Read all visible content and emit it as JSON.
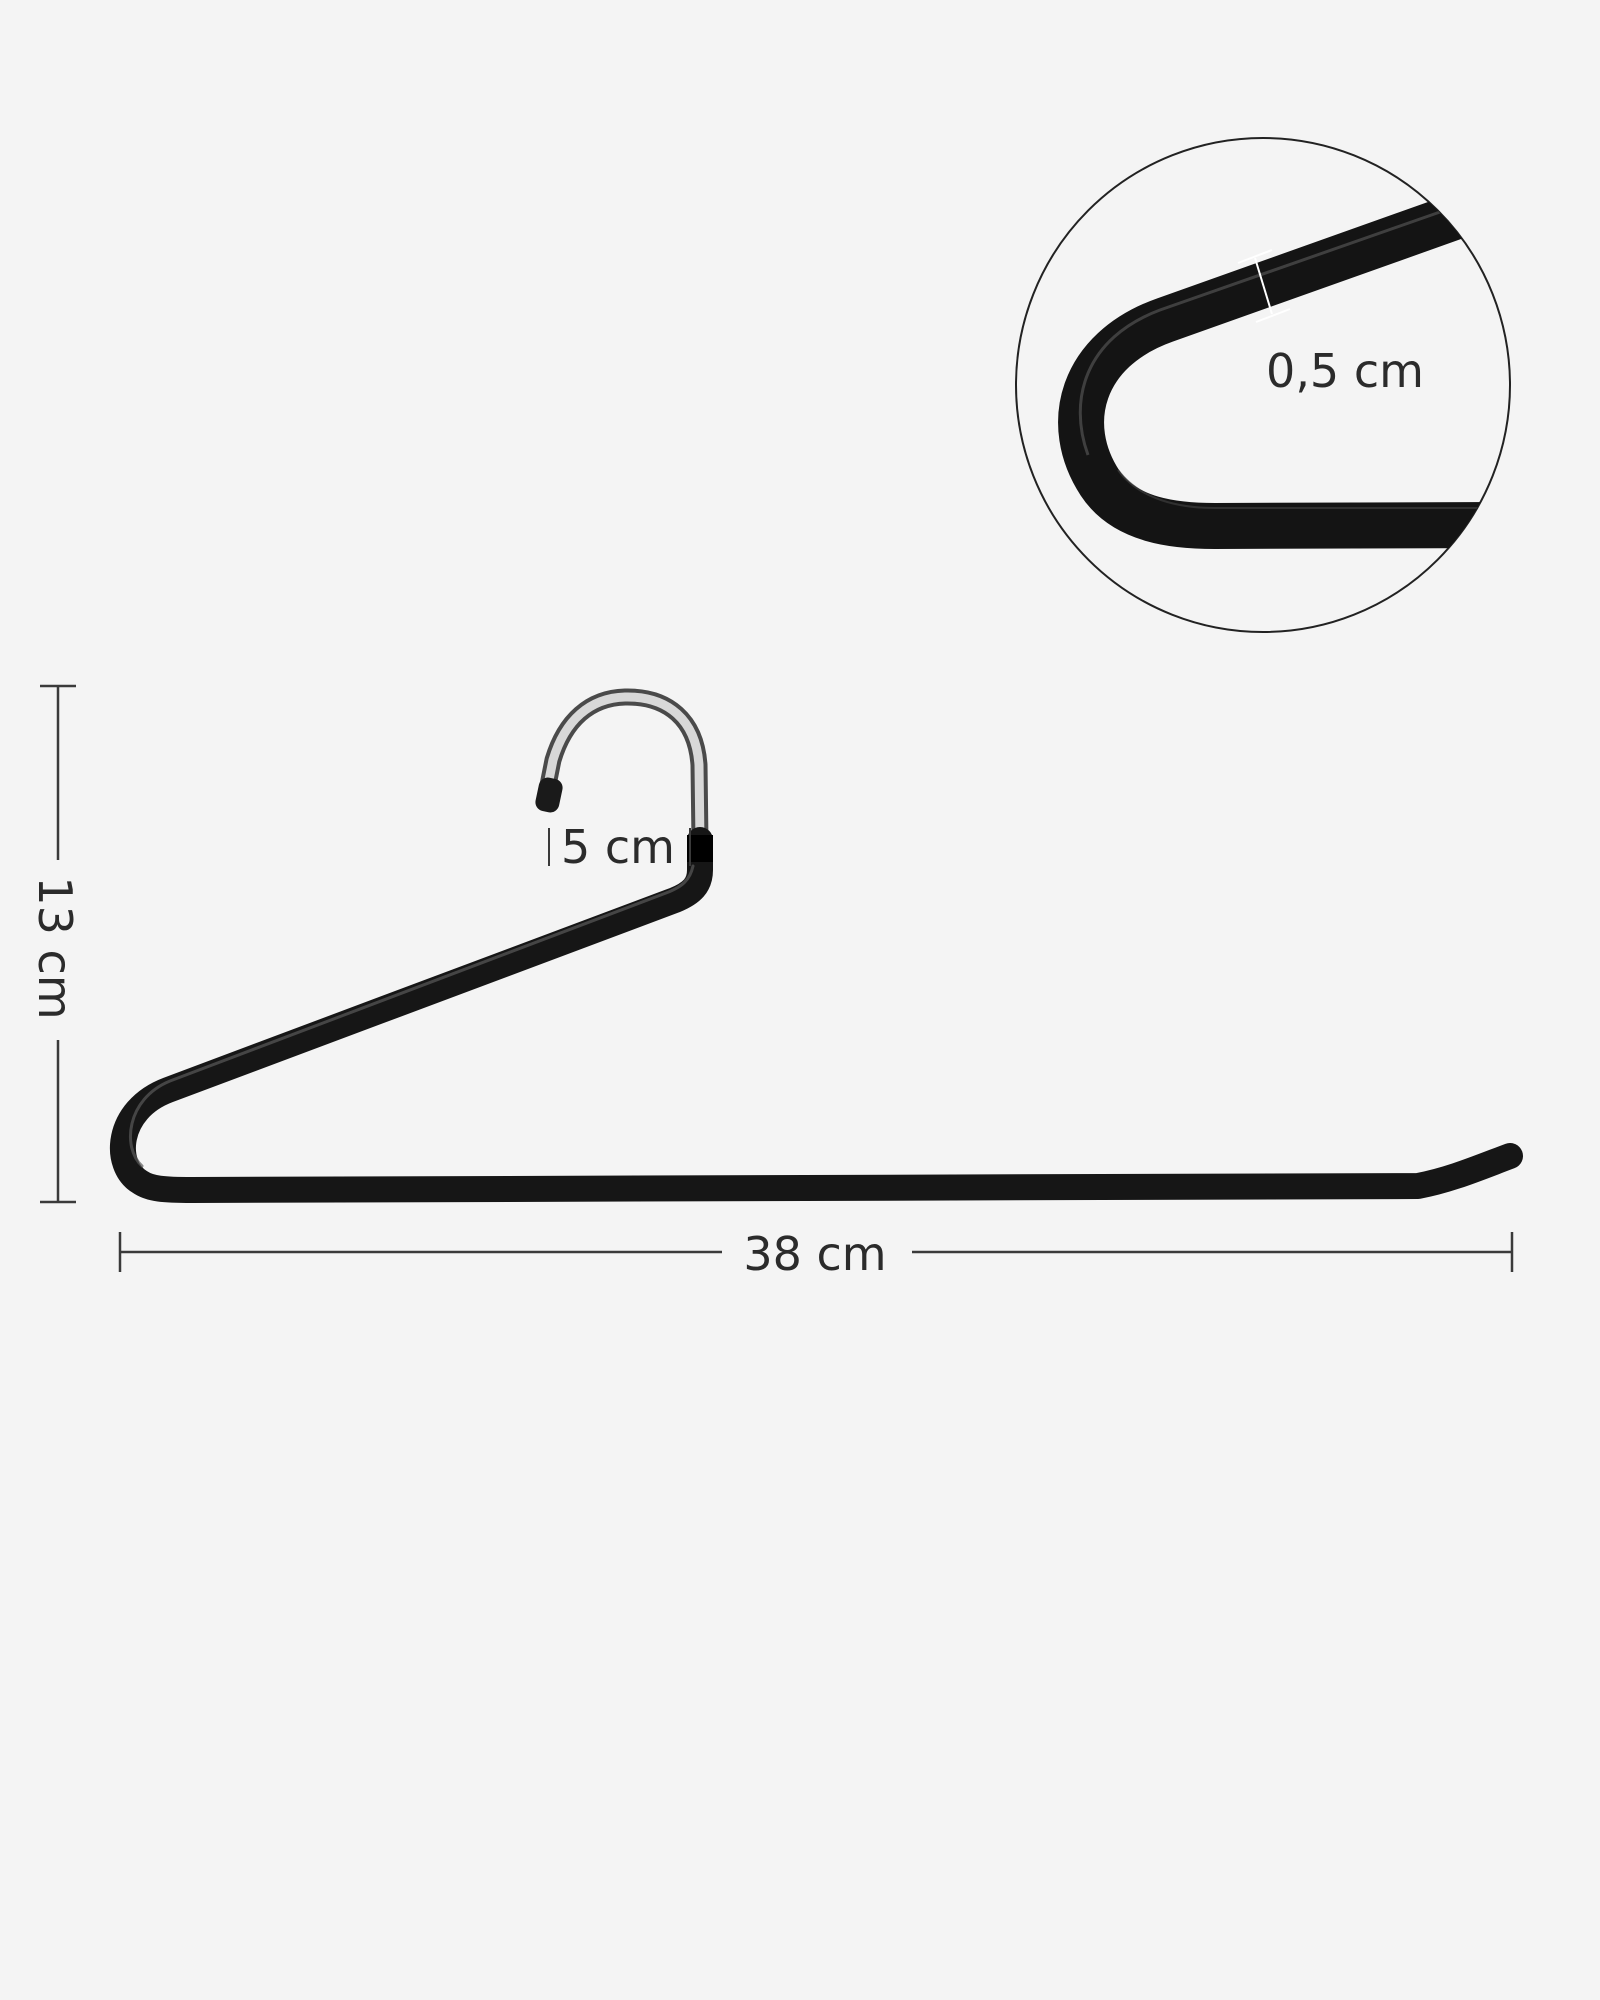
{
  "dimensions": {
    "width_label": "38 cm",
    "height_label": "13 cm",
    "hook_label": "5 cm",
    "thickness_label": "0,5 cm"
  },
  "colors": {
    "background": "#f4f4f4",
    "hanger": "#1c1c1c",
    "hook_metal": "#c9c9c9",
    "dimension_line": "#3a3a3a"
  },
  "icons": {
    "product": "trouser-hanger",
    "detail": "magnified-bend-detail"
  }
}
